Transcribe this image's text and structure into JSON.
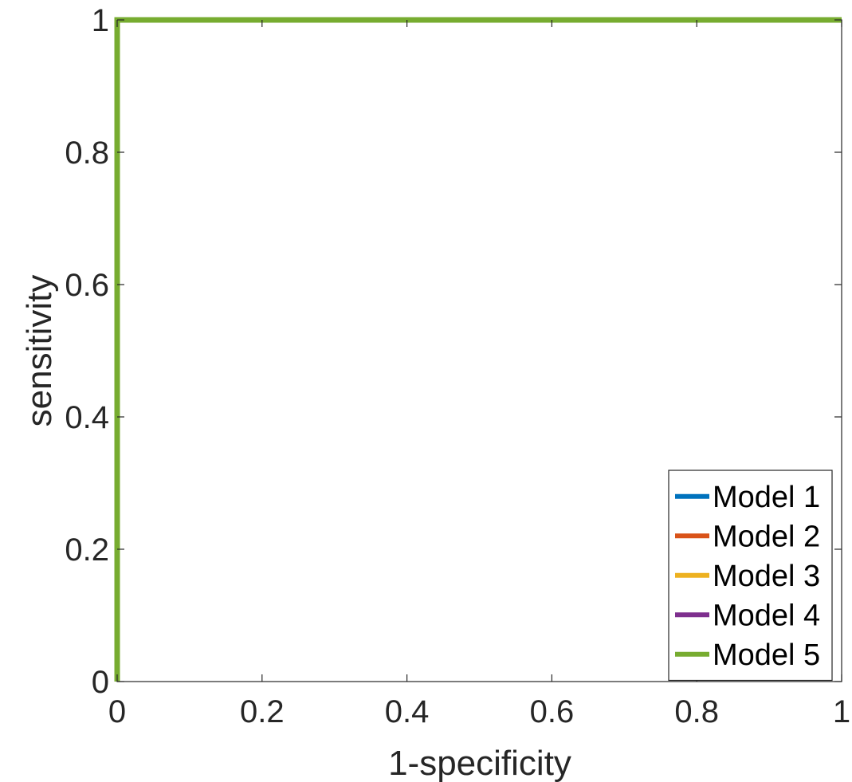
{
  "chart_data": {
    "type": "line",
    "title": "",
    "xlabel": "1-specificity",
    "ylabel": "sensitivity",
    "xlim": [
      0,
      1
    ],
    "ylim": [
      0,
      1
    ],
    "xticks": [
      0,
      0.2,
      0.4,
      0.6,
      0.8,
      1
    ],
    "xtick_labels": [
      "0",
      "0.2",
      "0.4",
      "0.6",
      "0.8",
      "1"
    ],
    "yticks": [
      0,
      0.2,
      0.4,
      0.6,
      0.8,
      1
    ],
    "ytick_labels": [
      "0",
      "0.2",
      "0.4",
      "0.6",
      "0.8",
      "1"
    ],
    "grid": false,
    "legend_position": "bottom-right",
    "series": [
      {
        "name": "Model 1",
        "color": "#0072BD",
        "x": [
          0,
          0,
          1
        ],
        "y": [
          0,
          1,
          1
        ]
      },
      {
        "name": "Model 2",
        "color": "#D95319",
        "x": [
          0,
          0,
          1
        ],
        "y": [
          0,
          1,
          1
        ]
      },
      {
        "name": "Model 3",
        "color": "#EDB120",
        "x": [
          0,
          0,
          1
        ],
        "y": [
          0,
          1,
          1
        ]
      },
      {
        "name": "Model 4",
        "color": "#7E2F8E",
        "x": [
          0,
          0,
          1
        ],
        "y": [
          0,
          1,
          1
        ]
      },
      {
        "name": "Model 5",
        "color": "#77AC30",
        "x": [
          0,
          0,
          1
        ],
        "y": [
          0,
          1,
          1
        ]
      }
    ]
  }
}
